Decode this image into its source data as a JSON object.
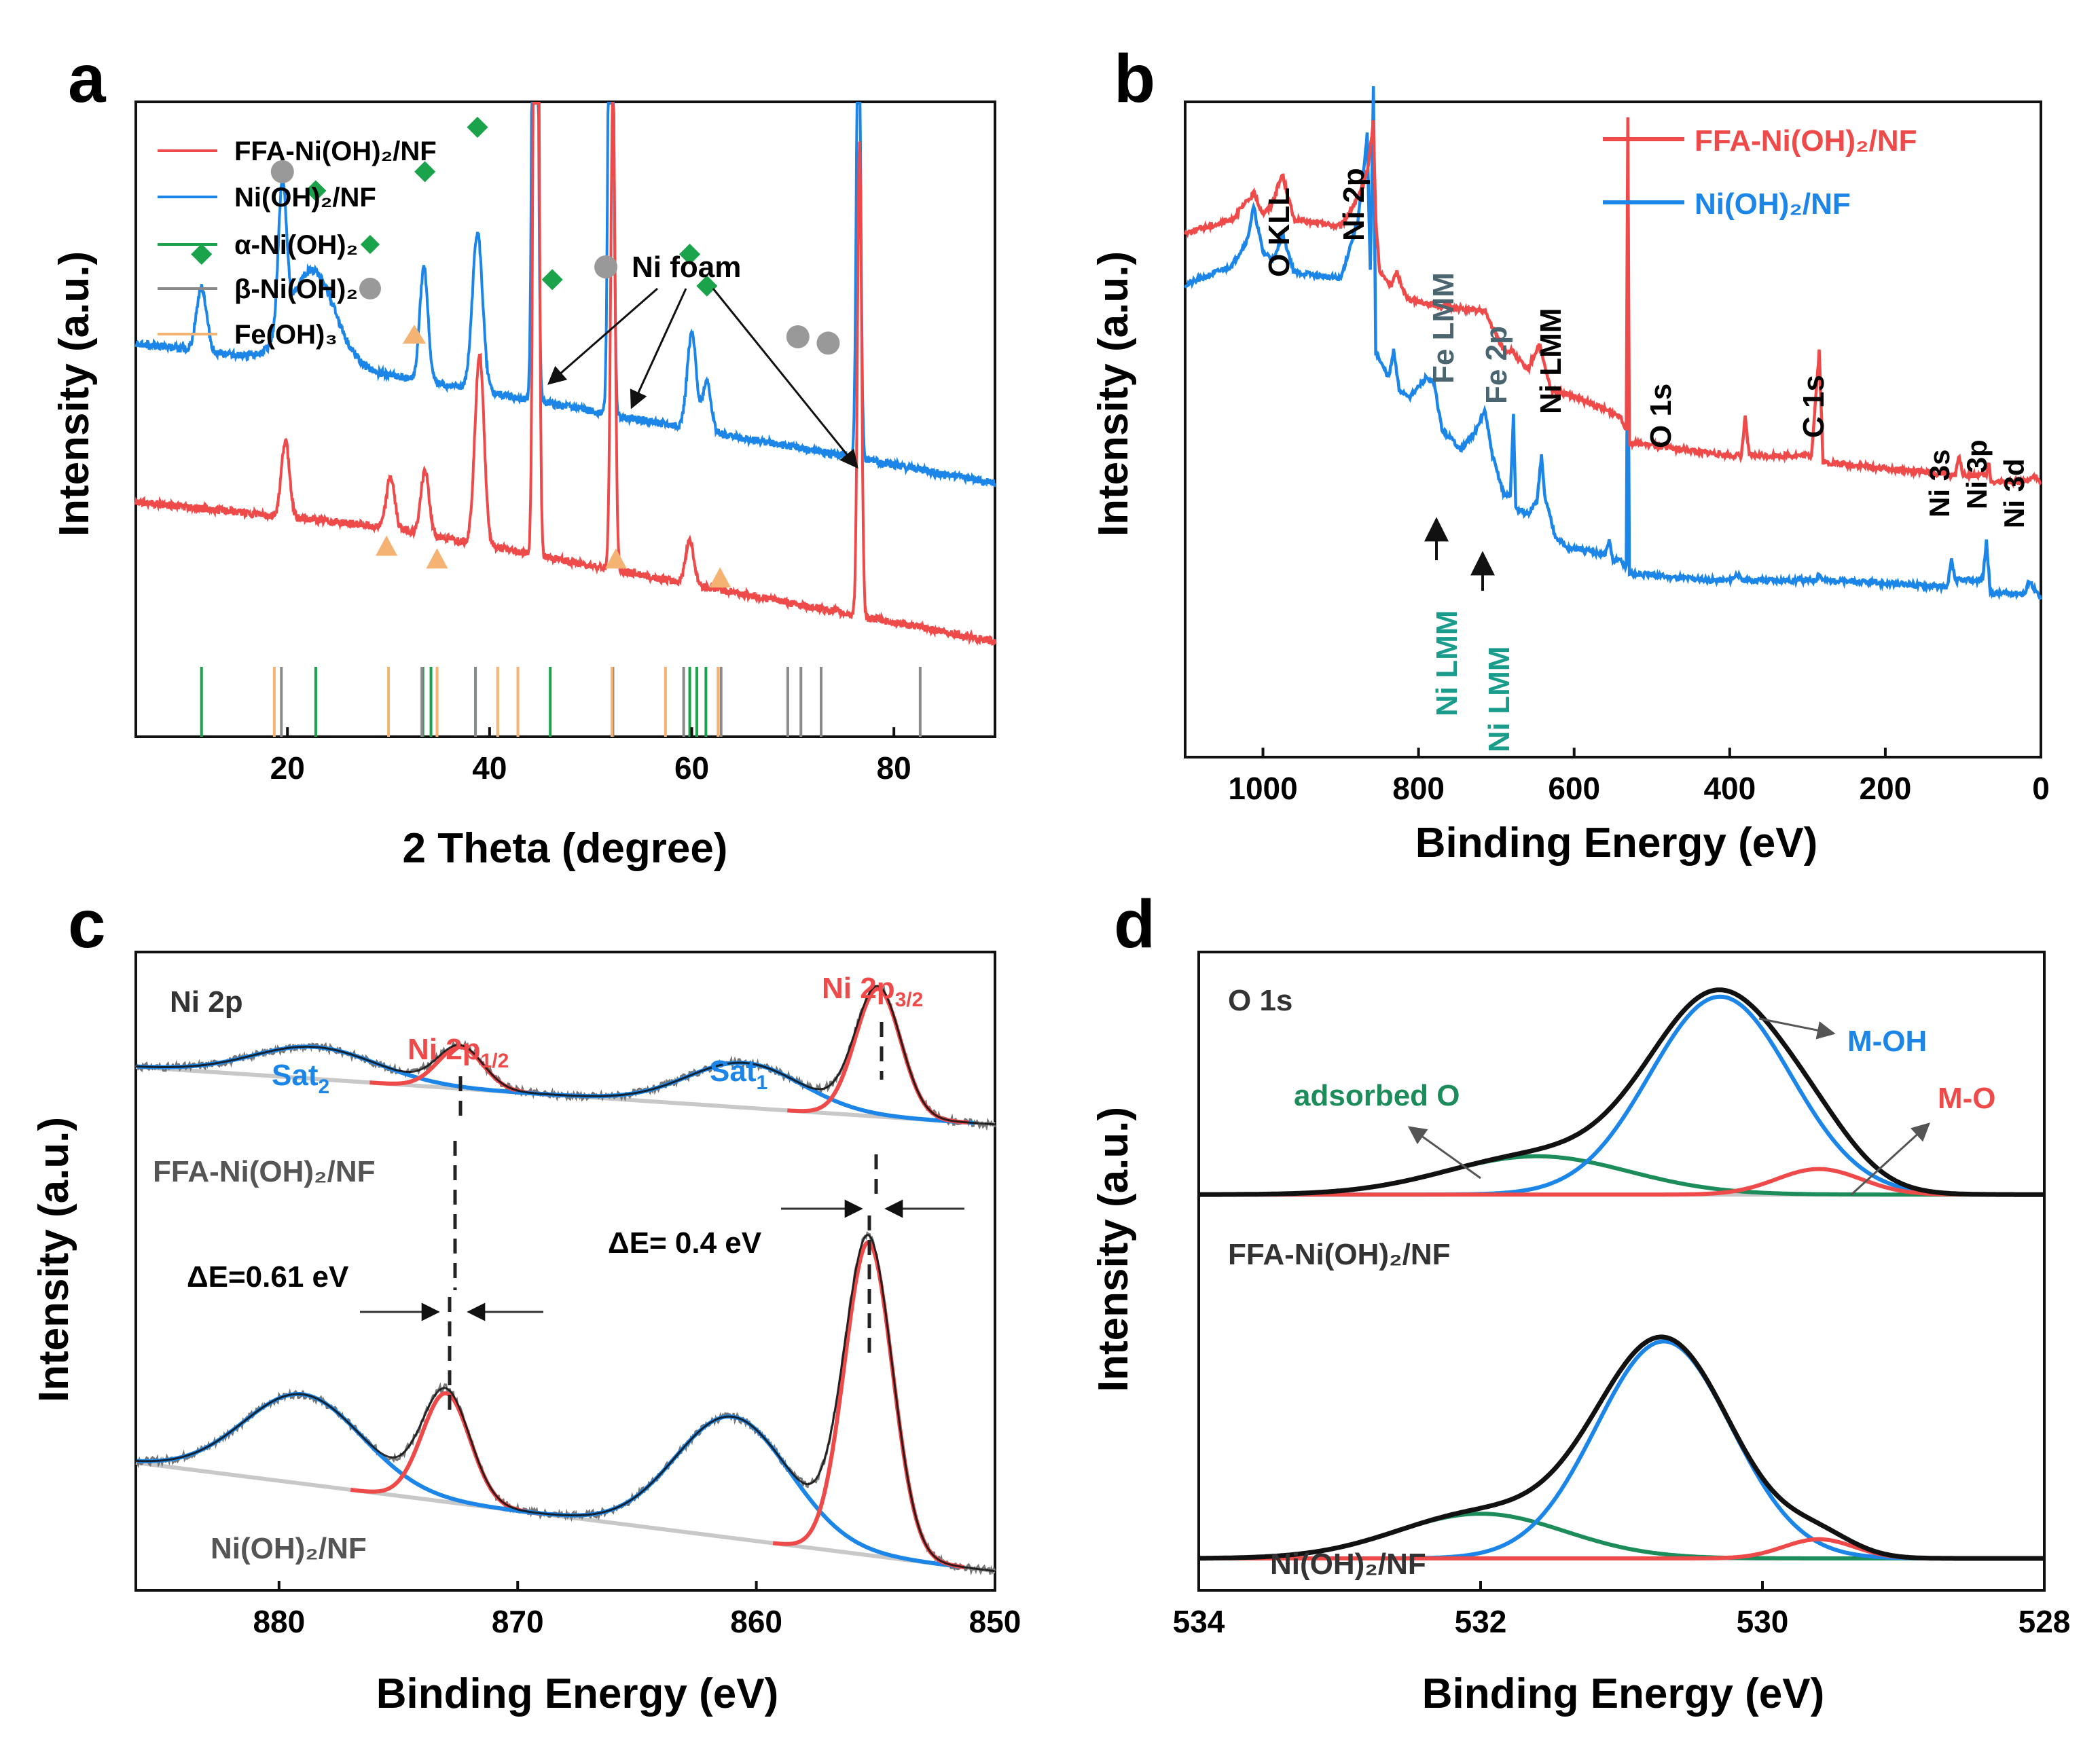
{
  "colors": {
    "red": "#ef4a4a",
    "blue": "#1c86e8",
    "green": "#1aa34b",
    "gray": "#8a8a8a",
    "orange": "#f5b373",
    "black": "#111111",
    "lightgray": "#c8c8c8",
    "teal": "#1a9c8c",
    "slate": "#4a6470",
    "darkgreen": "#1c8c5a"
  },
  "chart_data": [
    {
      "panel": "a",
      "type": "line",
      "xlabel": "2 Theta (degree)",
      "ylabel": "Intensity (a.u.)",
      "xlim": [
        5,
        90
      ],
      "xticks": [
        "20",
        "40",
        "60",
        "80"
      ],
      "legend": [
        {
          "label": "FFA-Ni(OH)₂/NF",
          "color": "red",
          "marker": ""
        },
        {
          "label": "Ni(OH)₂/NF",
          "color": "blue",
          "marker": ""
        },
        {
          "label": "α-Ni(OH)₂",
          "color": "green",
          "marker": "diamond"
        },
        {
          "label": "β-Ni(OH)₂",
          "color": "gray",
          "marker": "circle"
        },
        {
          "label": "Fe(OH)₃",
          "color": "orange",
          "marker": "triangle"
        }
      ],
      "annotation": "Ni foam",
      "series": [
        {
          "name": "Ni(OH)2/NF",
          "color": "blue",
          "baseline": [
            [
              5,
              0.62
            ],
            [
              30,
              0.57
            ],
            [
              90,
              0.4
            ]
          ],
          "peaks": [
            [
              11.5,
              0.1,
              0.5
            ],
            [
              19.5,
              0.23,
              0.4
            ],
            [
              22.5,
              0.15,
              2.2
            ],
            [
              33.5,
              0.18,
              0.4
            ],
            [
              38.8,
              0.25,
              0.5
            ],
            [
              44.5,
              1.6,
              0.22
            ],
            [
              52.0,
              1.2,
              0.22
            ],
            [
              60.0,
              0.15,
              0.45
            ],
            [
              61.5,
              0.08,
              0.4
            ],
            [
              76.5,
              0.8,
              0.2
            ]
          ]
        },
        {
          "name": "FFA-Ni(OH)2/NF",
          "color": "red",
          "baseline": [
            [
              5,
              0.37
            ],
            [
              30,
              0.33
            ],
            [
              90,
              0.15
            ]
          ],
          "peaks": [
            [
              19.8,
              0.12,
              0.4
            ],
            [
              30.2,
              0.08,
              0.4
            ],
            [
              33.6,
              0.1,
              0.4
            ],
            [
              39.0,
              0.3,
              0.45
            ],
            [
              44.6,
              1.9,
              0.22
            ],
            [
              52.2,
              0.75,
              0.22
            ],
            [
              59.8,
              0.07,
              0.4
            ],
            [
              76.6,
              0.75,
              0.2
            ]
          ]
        }
      ],
      "markers": [
        {
          "shape": "diamond",
          "x": 11.5,
          "level": 0.76
        },
        {
          "shape": "circle",
          "x": 19.5,
          "level": 0.89
        },
        {
          "shape": "diamond",
          "x": 22.8,
          "level": 0.86
        },
        {
          "shape": "diamond",
          "x": 33.6,
          "level": 0.89
        },
        {
          "shape": "diamond",
          "x": 38.8,
          "level": 0.96
        },
        {
          "shape": "diamond",
          "x": 46.2,
          "level": 0.72
        },
        {
          "shape": "circle",
          "x": 51.5,
          "level": 0.74
        },
        {
          "shape": "diamond",
          "x": 59.8,
          "level": 0.76
        },
        {
          "shape": "diamond",
          "x": 61.5,
          "level": 0.71
        },
        {
          "shape": "circle",
          "x": 70.5,
          "level": 0.63
        },
        {
          "shape": "circle",
          "x": 73.5,
          "level": 0.62
        },
        {
          "shape": "triangle",
          "x": 29.8,
          "level": 0.3
        },
        {
          "shape": "triangle",
          "x": 34.8,
          "level": 0.28
        },
        {
          "shape": "triangle",
          "x": 52.5,
          "level": 0.28
        },
        {
          "shape": "triangle",
          "x": 62.8,
          "level": 0.25
        }
      ],
      "reference_lines": {
        "green": [
          11.5,
          22.8,
          33.4,
          34.2,
          38.6,
          46.0,
          59.8,
          60.5,
          61.4
        ],
        "gray": [
          19.4,
          33.3,
          38.6,
          52.2,
          59.2,
          62.9,
          69.5,
          70.8,
          72.8,
          82.6
        ],
        "orange": [
          18.7,
          30.0,
          34.8,
          40.8,
          42.8,
          52.1,
          57.4,
          62.6
        ]
      }
    },
    {
      "panel": "b",
      "type": "line",
      "xlabel": "Binding Energy (eV)",
      "ylabel": "Intensity (a.u.)",
      "xlim": [
        1100,
        0
      ],
      "xticks": [
        "1000",
        "800",
        "600",
        "400",
        "200",
        "0"
      ],
      "legend": [
        {
          "label": "FFA-Ni(OH)₂/NF",
          "color": "red"
        },
        {
          "label": "Ni(OH)₂/NF",
          "color": "blue"
        }
      ],
      "labels": {
        "o_kll": "O KLL",
        "ni2p": "Ni 2p",
        "fe_lmm": "Fe LMM",
        "fe2p": "Fe 2p",
        "ni_lmm": "Ni LMM",
        "o1s": "O 1s",
        "c1s": "C 1s",
        "ni3s": "Ni 3s",
        "ni3p": "Ni 3p",
        "ni3d": "Ni 3d",
        "ni_lmm_1": "Ni LMM",
        "ni_lmm_2": "Ni LMM"
      },
      "series": [
        {
          "name": "FFA-Ni(OH)2/NF",
          "color": "red",
          "points": [
            [
              1100,
              0.8
            ],
            [
              1040,
              0.82
            ],
            [
              1012,
              0.86
            ],
            [
              1000,
              0.83
            ],
            [
              990,
              0.84
            ],
            [
              975,
              0.89
            ],
            [
              960,
              0.82
            ],
            [
              900,
              0.81
            ],
            [
              875,
              0.86
            ],
            [
              865,
              0.9
            ],
            [
              858,
              0.97
            ],
            [
              855,
              0.82
            ],
            [
              850,
              0.74
            ],
            [
              835,
              0.72
            ],
            [
              828,
              0.74
            ],
            [
              815,
              0.7
            ],
            [
              780,
              0.69
            ],
            [
              715,
              0.68
            ],
            [
              690,
              0.62
            ],
            [
              680,
              0.62
            ],
            [
              660,
              0.59
            ],
            [
              645,
              0.63
            ],
            [
              630,
              0.56
            ],
            [
              600,
              0.55
            ],
            [
              560,
              0.53
            ],
            [
              540,
              0.52
            ],
            [
              533,
              0.5
            ],
            [
              531,
              0.98
            ],
            [
              529,
              0.48
            ],
            [
              400,
              0.46
            ],
            [
              385,
              0.46
            ],
            [
              380,
              0.52
            ],
            [
              375,
              0.46
            ],
            [
              295,
              0.46
            ],
            [
              285,
              0.62
            ],
            [
              280,
              0.45
            ],
            [
              110,
              0.43
            ],
            [
              105,
              0.46
            ],
            [
              100,
              0.43
            ],
            [
              70,
              0.43
            ],
            [
              67,
              0.45
            ],
            [
              64,
              0.42
            ],
            [
              15,
              0.42
            ],
            [
              10,
              0.43
            ],
            [
              0,
              0.42
            ]
          ]
        },
        {
          "name": "Ni(OH)2/NF",
          "color": "blue",
          "points": [
            [
              1100,
              0.72
            ],
            [
              1040,
              0.75
            ],
            [
              1020,
              0.79
            ],
            [
              1012,
              0.84
            ],
            [
              1000,
              0.77
            ],
            [
              985,
              0.76
            ],
            [
              975,
              0.8
            ],
            [
              960,
              0.74
            ],
            [
              900,
              0.73
            ],
            [
              878,
              0.82
            ],
            [
              870,
              0.9
            ],
            [
              866,
              0.95
            ],
            [
              862,
              0.74
            ],
            [
              858,
              1.02
            ],
            [
              855,
              0.62
            ],
            [
              848,
              0.6
            ],
            [
              838,
              0.58
            ],
            [
              832,
              0.62
            ],
            [
              825,
              0.56
            ],
            [
              810,
              0.55
            ],
            [
              790,
              0.58
            ],
            [
              780,
              0.57
            ],
            [
              770,
              0.5
            ],
            [
              745,
              0.47
            ],
            [
              725,
              0.5
            ],
            [
              715,
              0.53
            ],
            [
              705,
              0.46
            ],
            [
              690,
              0.4
            ],
            [
              682,
              0.4
            ],
            [
              678,
              0.52
            ],
            [
              675,
              0.38
            ],
            [
              660,
              0.37
            ],
            [
              648,
              0.39
            ],
            [
              642,
              0.46
            ],
            [
              638,
              0.4
            ],
            [
              625,
              0.34
            ],
            [
              610,
              0.32
            ],
            [
              560,
              0.31
            ],
            [
              555,
              0.33
            ],
            [
              550,
              0.3
            ],
            [
              540,
              0.3
            ],
            [
              533,
              0.29
            ],
            [
              531,
              0.76
            ],
            [
              529,
              0.28
            ],
            [
              420,
              0.27
            ],
            [
              400,
              0.27
            ],
            [
              390,
              0.28
            ],
            [
              385,
              0.27
            ],
            [
              290,
              0.27
            ],
            [
              285,
              0.28
            ],
            [
              280,
              0.27
            ],
            [
              120,
              0.26
            ],
            [
              115,
              0.3
            ],
            [
              110,
              0.27
            ],
            [
              75,
              0.27
            ],
            [
              70,
              0.33
            ],
            [
              65,
              0.25
            ],
            [
              20,
              0.25
            ],
            [
              15,
              0.27
            ],
            [
              0,
              0.24
            ]
          ]
        }
      ]
    },
    {
      "panel": "c",
      "type": "line",
      "xlabel": "Binding Energy (eV)",
      "ylabel": "Intensity (a.u.)",
      "xlim": [
        886,
        850
      ],
      "xticks": [
        "880",
        "870",
        "860",
        "850"
      ],
      "labels": {
        "title": "Ni 2p",
        "sat2": "Sat",
        "sat2_sub": "2",
        "ni2p12": "Ni 2p",
        "ni2p12_sub": "1/2",
        "sat1": "Sat",
        "sat1_sub": "1",
        "ni2p32": "Ni 2p",
        "ni2p32_sub": "3/2",
        "sample_top": "FFA-Ni(OH)₂/NF",
        "sample_bottom": "Ni(OH)₂/NF",
        "delta1": "ΔE=0.61 eV",
        "delta2": "ΔE= 0.4 eV"
      },
      "top_fit": {
        "baseline": [
          [
            886,
            0.82
          ],
          [
            850,
            0.73
          ]
        ],
        "components": [
          {
            "color": "blue",
            "center": 878.5,
            "amp": 0.05,
            "sigma": 2.6
          },
          {
            "color": "red",
            "center": 872.4,
            "amp": 0.065,
            "sigma": 0.95
          },
          {
            "color": "blue",
            "center": 860.5,
            "amp": 0.07,
            "sigma": 2.4
          },
          {
            "color": "red",
            "center": 854.9,
            "amp": 0.2,
            "sigma": 0.95
          }
        ]
      },
      "bottom_fit": {
        "baseline": [
          [
            886,
            0.2
          ],
          [
            850,
            0.03
          ]
        ],
        "components": [
          {
            "color": "blue",
            "center": 879.0,
            "amp": 0.14,
            "sigma": 2.5
          },
          {
            "color": "red",
            "center": 873.0,
            "amp": 0.17,
            "sigma": 1.0
          },
          {
            "color": "blue",
            "center": 861.0,
            "amp": 0.19,
            "sigma": 2.4
          },
          {
            "color": "red",
            "center": 855.3,
            "amp": 0.49,
            "sigma": 1.0
          }
        ]
      }
    },
    {
      "panel": "d",
      "type": "line",
      "xlabel": "Binding Energy (eV)",
      "ylabel": "Intensity (a.u.)",
      "xlim": [
        534,
        528
      ],
      "xticks": [
        "534",
        "532",
        "530",
        "528"
      ],
      "labels": {
        "title": "O 1s",
        "moh": "M-OH",
        "adsorbed": "adsorbed O",
        "mo": "M-O",
        "sample_top": "FFA-Ni(OH)₂/NF",
        "sample_bottom": "Ni(OH)₂/NF"
      },
      "top_fit": {
        "baseline": 0.62,
        "components": [
          {
            "color": "darkgreen",
            "center": 531.6,
            "amp": 0.06,
            "sigma": 0.65
          },
          {
            "color": "blue",
            "center": 530.3,
            "amp": 0.31,
            "sigma": 0.5
          },
          {
            "color": "red",
            "center": 529.6,
            "amp": 0.04,
            "sigma": 0.3
          }
        ]
      },
      "bottom_fit": {
        "baseline": 0.05,
        "components": [
          {
            "color": "darkgreen",
            "center": 532.0,
            "amp": 0.07,
            "sigma": 0.6
          },
          {
            "color": "blue",
            "center": 530.7,
            "amp": 0.34,
            "sigma": 0.48
          },
          {
            "color": "red",
            "center": 529.6,
            "amp": 0.03,
            "sigma": 0.25
          }
        ]
      }
    }
  ]
}
